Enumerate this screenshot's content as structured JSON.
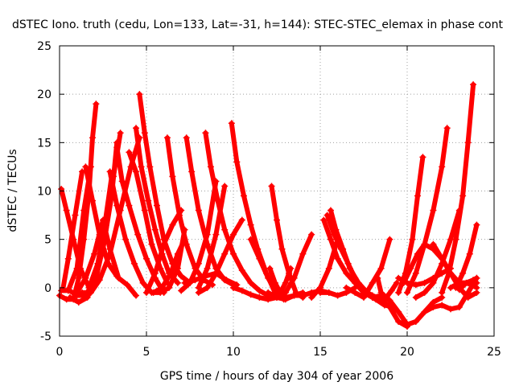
{
  "chart_data": {
    "type": "scatter",
    "title": "dSTEC Iono. truth (cedu, Lon=133, Lat=-31, h=144): STEC-STEC_elemax in phase cont",
    "xlabel": "GPS time / hours of day 304 of year 2006",
    "ylabel": "dSTEC  / TECUs",
    "xlim": [
      0,
      25
    ],
    "ylim": [
      -5,
      25
    ],
    "xticks": [
      0,
      5,
      10,
      15,
      20,
      25
    ],
    "yticks": [
      -5,
      0,
      5,
      10,
      15,
      20,
      25
    ],
    "grid": true,
    "grid_style": "dotted",
    "marker": "plus",
    "color": "#ff0000",
    "series": [
      {
        "x": [
          0.1,
          0.4,
          0.8,
          1.2,
          1.7,
          2.2,
          2.6,
          3.0
        ],
        "y": [
          10.2,
          8.0,
          5.0,
          2.0,
          0.0,
          2.5,
          6.5,
          11.5
        ]
      },
      {
        "x": [
          0.1,
          0.5,
          1.0,
          1.4,
          1.8
        ],
        "y": [
          -0.3,
          -0.3,
          2.0,
          8.0,
          12.5
        ]
      },
      {
        "x": [
          0.0,
          0.4,
          0.8,
          1.1,
          1.4,
          1.7,
          1.9,
          2.1
        ],
        "y": [
          -0.8,
          -1.2,
          -1.2,
          1.0,
          5.0,
          10.0,
          15.5,
          19.0
        ]
      },
      {
        "x": [
          0.2,
          0.5,
          0.9,
          1.3
        ],
        "y": [
          -0.1,
          3.0,
          7.5,
          12.0
        ]
      },
      {
        "x": [
          0.5,
          1.0,
          1.5,
          2.0,
          2.5,
          3.0,
          3.3
        ],
        "y": [
          -0.2,
          -0.8,
          -0.8,
          0.8,
          4.0,
          9.5,
          15.0
        ]
      },
      {
        "x": [
          0.6,
          1.1,
          1.6,
          2.1,
          2.6,
          3.1,
          3.5
        ],
        "y": [
          -1.0,
          -1.5,
          -1.0,
          1.0,
          5.0,
          11.5,
          16.0
        ]
      },
      {
        "x": [
          1.0,
          1.5,
          2.0,
          2.5,
          2.9,
          3.4,
          3.9,
          4.4
        ],
        "y": [
          -0.5,
          1.0,
          3.5,
          7.0,
          4.0,
          1.0,
          0.3,
          -0.8
        ]
      },
      {
        "x": [
          1.3,
          1.8,
          2.3,
          2.9,
          3.5,
          4.1,
          4.6
        ],
        "y": [
          -0.5,
          -0.5,
          0.8,
          3.5,
          8.0,
          12.5,
          15.5
        ]
      },
      {
        "x": [
          1.5,
          1.9,
          2.3,
          2.8,
          3.3
        ],
        "y": [
          12.5,
          9.0,
          5.5,
          2.5,
          1.2
        ]
      },
      {
        "x": [
          2.9,
          3.3,
          3.8,
          4.3,
          4.8,
          5.3,
          5.8,
          6.3,
          6.8,
          7.2
        ],
        "y": [
          12.0,
          8.5,
          5.0,
          2.5,
          0.5,
          -0.5,
          -0.5,
          0.0,
          2.0,
          6.0
        ]
      },
      {
        "x": [
          3.3,
          3.6,
          4.0,
          4.5,
          5.0,
          5.5,
          6.0
        ],
        "y": [
          14.5,
          11.0,
          8.5,
          5.5,
          3.0,
          1.0,
          -0.5
        ]
      },
      {
        "x": [
          4.0,
          4.4,
          4.9,
          5.3,
          5.8,
          6.2
        ],
        "y": [
          14.0,
          12.0,
          8.0,
          4.5,
          2.0,
          0.5
        ]
      },
      {
        "x": [
          4.4,
          4.7,
          5.1,
          5.5,
          5.9,
          6.3,
          6.8
        ],
        "y": [
          16.5,
          12.5,
          9.0,
          6.0,
          3.5,
          1.5,
          0.5
        ]
      },
      {
        "x": [
          4.6,
          4.9,
          5.2,
          5.6,
          6.0,
          6.5,
          7.0,
          7.5
        ],
        "y": [
          20.0,
          16.0,
          12.5,
          8.5,
          5.0,
          2.5,
          1.2,
          0.5
        ]
      },
      {
        "x": [
          5.0,
          5.5,
          6.0,
          6.5,
          7.0
        ],
        "y": [
          -0.5,
          1.5,
          4.5,
          6.5,
          8.0
        ]
      },
      {
        "x": [
          6.2,
          6.5,
          6.9,
          7.3,
          7.8,
          8.3,
          8.8
        ],
        "y": [
          15.5,
          11.5,
          7.5,
          4.5,
          2.0,
          0.8,
          0.3
        ]
      },
      {
        "x": [
          5.4,
          5.9,
          6.4,
          6.8,
          7.2
        ],
        "y": [
          -0.5,
          0.0,
          1.5,
          3.5,
          5.0
        ]
      },
      {
        "x": [
          7.3,
          7.6,
          8.0,
          8.5,
          9.0,
          9.5,
          10.0
        ],
        "y": [
          15.5,
          12.0,
          8.0,
          4.5,
          2.0,
          0.8,
          0.3
        ]
      },
      {
        "x": [
          7.2,
          7.8,
          8.4,
          9.0,
          9.6,
          10.2
        ],
        "y": [
          0.5,
          0.8,
          1.2,
          1.5,
          0.8,
          0.3
        ]
      },
      {
        "x": [
          7.0,
          7.5,
          8.0,
          8.5,
          9.0
        ],
        "y": [
          -0.3,
          0.5,
          2.5,
          5.5,
          11.0
        ]
      },
      {
        "x": [
          8.0,
          8.5,
          9.0,
          9.5
        ],
        "y": [
          0.0,
          2.0,
          5.5,
          10.5
        ]
      },
      {
        "x": [
          8.4,
          8.7,
          9.1,
          9.5,
          10.0,
          10.5,
          11.0,
          11.5,
          12.0
        ],
        "y": [
          16.0,
          12.5,
          9.0,
          6.0,
          3.5,
          1.8,
          0.5,
          -0.3,
          -0.8
        ]
      },
      {
        "x": [
          9.9,
          10.2,
          10.6,
          11.0,
          11.4,
          11.9,
          12.4,
          12.9
        ],
        "y": [
          17.0,
          13.0,
          9.5,
          6.5,
          4.0,
          1.5,
          -0.5,
          -1.2
        ]
      },
      {
        "x": [
          10.0,
          10.5,
          11.0,
          11.5,
          12.0,
          12.5,
          13.0
        ],
        "y": [
          0.0,
          -0.3,
          -0.7,
          -1.0,
          -1.2,
          -1.0,
          -0.5
        ]
      },
      {
        "x": [
          8.0,
          8.5,
          9.0,
          9.5,
          10.0,
          10.5
        ],
        "y": [
          -0.5,
          0.0,
          1.5,
          3.5,
          5.5,
          7.0
        ]
      },
      {
        "x": [
          11.0,
          11.5,
          12.0,
          12.5,
          13.0,
          13.5,
          14.0
        ],
        "y": [
          5.0,
          3.0,
          1.0,
          -0.5,
          -1.0,
          -0.8,
          -0.5
        ]
      },
      {
        "x": [
          12.2,
          12.5,
          12.8,
          13.2,
          13.6,
          14.0
        ],
        "y": [
          10.5,
          7.0,
          4.0,
          1.5,
          -0.5,
          -1.0
        ]
      },
      {
        "x": [
          12.1,
          12.4,
          12.7,
          13.0,
          13.3
        ],
        "y": [
          2.0,
          0.5,
          -0.5,
          0.5,
          2.0
        ]
      },
      {
        "x": [
          12.0,
          12.5,
          13.0,
          13.5,
          14.0,
          14.5,
          15.0,
          15.5
        ],
        "y": [
          -0.5,
          -1.0,
          -1.2,
          -0.8,
          -0.8,
          -0.5,
          -0.3,
          -0.5
        ]
      },
      {
        "x": [
          13.0,
          13.5,
          14.0,
          14.5
        ],
        "y": [
          -0.5,
          1.0,
          3.5,
          5.5
        ]
      },
      {
        "x": [
          15.2,
          15.6,
          16.0,
          16.5,
          17.0,
          17.5,
          18.0,
          18.5,
          19.0
        ],
        "y": [
          7.0,
          5.0,
          3.0,
          1.5,
          0.5,
          -0.5,
          -1.0,
          -1.5,
          -1.8
        ]
      },
      {
        "x": [
          15.4,
          15.8,
          16.2,
          16.6,
          17.0,
          17.5,
          18.0,
          18.5
        ],
        "y": [
          7.5,
          5.5,
          4.0,
          2.5,
          1.0,
          -0.3,
          -0.8,
          -1.2
        ]
      },
      {
        "x": [
          15.6,
          15.9,
          16.3,
          16.7,
          17.2,
          17.7,
          18.2,
          18.7,
          19.2
        ],
        "y": [
          8.0,
          6.0,
          4.0,
          2.0,
          0.5,
          -0.5,
          -1.2,
          -1.8,
          -2.0
        ]
      },
      {
        "x": [
          15.0,
          15.5,
          16.0,
          16.5,
          17.0
        ],
        "y": [
          -0.5,
          -0.5,
          -0.8,
          -0.5,
          0.0
        ]
      },
      {
        "x": [
          14.5,
          15.0,
          15.5,
          16.0
        ],
        "y": [
          -1.0,
          0.0,
          2.0,
          5.0
        ]
      },
      {
        "x": [
          16.5,
          17.0,
          17.5,
          18.0,
          18.5,
          19.0
        ],
        "y": [
          0.0,
          -0.5,
          -1.0,
          0.5,
          2.0,
          5.0
        ]
      },
      {
        "x": [
          17.0,
          17.5,
          18.0,
          18.5,
          19.0,
          19.5,
          20.0
        ],
        "y": [
          0.5,
          -0.3,
          -0.8,
          -1.2,
          -2.0,
          -3.5,
          -4.0
        ]
      },
      {
        "x": [
          18.3,
          18.5,
          18.8,
          19.1,
          19.4
        ],
        "y": [
          1.0,
          -0.5,
          -1.0,
          -0.3,
          0.5
        ]
      },
      {
        "x": [
          18.0,
          18.5,
          19.0,
          19.5,
          20.0,
          20.5,
          21.0,
          21.5,
          22.0
        ],
        "y": [
          -1.0,
          -0.8,
          -1.3,
          -2.5,
          -3.8,
          -3.5,
          -2.5,
          -1.5,
          -1.0
        ]
      },
      {
        "x": [
          19.5,
          20.0,
          20.5,
          21.0,
          21.5,
          22.0,
          22.5
        ],
        "y": [
          1.0,
          0.5,
          0.3,
          0.5,
          1.0,
          1.5,
          2.0
        ]
      },
      {
        "x": [
          19.5,
          19.9,
          20.3,
          20.6,
          20.9
        ],
        "y": [
          -0.5,
          1.5,
          5.0,
          9.5,
          13.5
        ]
      },
      {
        "x": [
          19.8,
          20.2,
          20.6,
          21.0,
          21.5,
          22.0,
          22.5,
          23.0,
          23.5,
          24.0
        ],
        "y": [
          0.5,
          2.0,
          3.5,
          4.5,
          4.0,
          3.0,
          1.5,
          0.0,
          -1.0,
          -0.5
        ]
      },
      {
        "x": [
          20.0,
          20.5,
          21.0,
          21.5,
          22.0,
          22.3
        ],
        "y": [
          -0.5,
          1.5,
          4.5,
          8.0,
          12.5,
          16.5
        ]
      },
      {
        "x": [
          20.5,
          21.0,
          21.5,
          22.0,
          22.5,
          23.0
        ],
        "y": [
          -1.0,
          -0.5,
          0.5,
          2.5,
          5.0,
          8.0
        ]
      },
      {
        "x": [
          21.0,
          21.5,
          22.0,
          22.5,
          23.0,
          23.5,
          24.0
        ],
        "y": [
          -2.5,
          -2.0,
          -1.8,
          -2.2,
          -2.0,
          -0.5,
          1.0
        ]
      },
      {
        "x": [
          21.5,
          22.0,
          22.5,
          23.0,
          23.5,
          24.0
        ],
        "y": [
          4.5,
          3.0,
          1.5,
          0.5,
          0.5,
          1.0
        ]
      },
      {
        "x": [
          22.0,
          22.4,
          22.8,
          23.2,
          23.5,
          23.8
        ],
        "y": [
          -0.5,
          1.5,
          5.0,
          9.5,
          15.0,
          21.0
        ]
      },
      {
        "x": [
          22.5,
          23.0,
          23.5,
          24.0
        ],
        "y": [
          0.0,
          0.5,
          0.5,
          0.0
        ]
      },
      {
        "x": [
          22.8,
          23.2,
          23.6,
          24.0
        ],
        "y": [
          0.0,
          1.5,
          3.5,
          6.5
        ]
      },
      {
        "x": [
          23.0,
          23.4,
          23.8,
          24.0
        ],
        "y": [
          -0.2,
          0.5,
          0.8,
          0.5
        ]
      }
    ]
  }
}
